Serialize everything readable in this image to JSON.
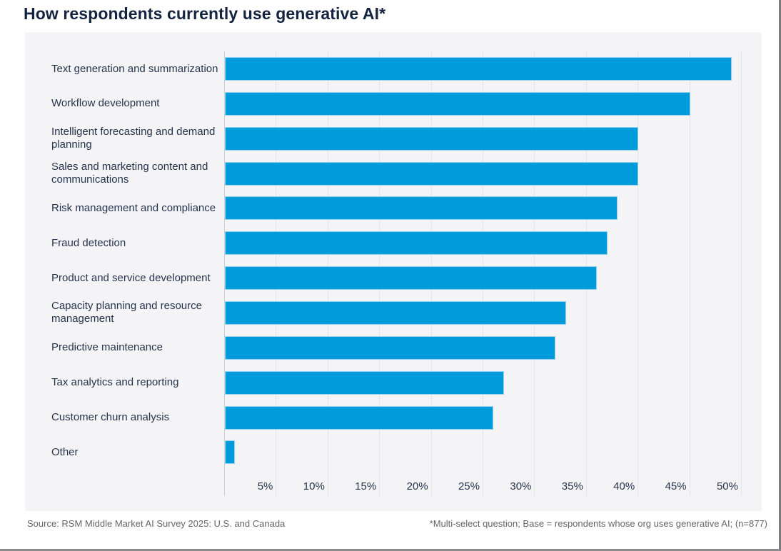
{
  "title": "How respondents currently use generative AI*",
  "chart_data": {
    "type": "bar",
    "orientation": "horizontal",
    "title": "How respondents currently use generative AI*",
    "categories": [
      "Text generation and summarization",
      "Workflow development",
      "Intelligent forecasting and demand planning",
      "Sales and marketing content and communications",
      "Risk management and compliance",
      "Fraud detection",
      "Product and service development",
      "Capacity planning and resource management",
      "Predictive maintenance",
      "Tax analytics and reporting",
      "Customer churn analysis",
      "Other"
    ],
    "values": [
      49,
      45,
      40,
      40,
      38,
      37,
      36,
      33,
      32,
      27,
      26,
      1
    ],
    "unit": "%",
    "xlim": [
      0,
      50
    ],
    "x_tick_step": 5,
    "x_tick_labels": [
      "5%",
      "10%",
      "15%",
      "20%",
      "25%",
      "30%",
      "35%",
      "40%",
      "45%",
      "50%"
    ],
    "grid": true,
    "legend": false,
    "bar_color": "#009bdb",
    "plot_background": "#f4f4f6",
    "gridline_color": "#e4e4e7"
  },
  "footer": {
    "source": "Source: RSM Middle Market AI Survey 2025: U.S. and Canada",
    "note": "*Multi-select question; Base = respondents whose org uses generative AI; (n=877)"
  },
  "colors": {
    "title_text": "#14233e",
    "label_text": "#26334d",
    "footer_text": "#66666a",
    "page_border": "#7d7d80"
  }
}
